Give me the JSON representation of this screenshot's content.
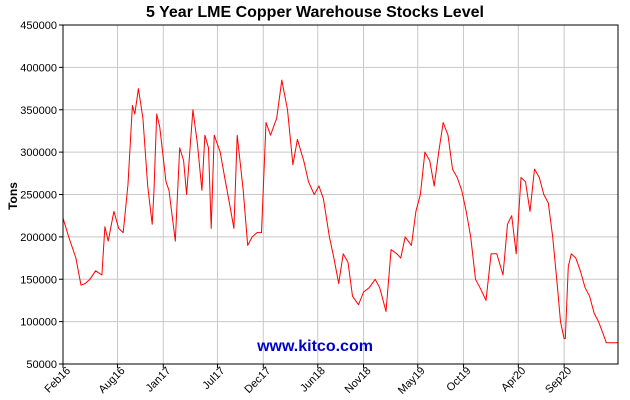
{
  "chart_data": {
    "type": "line",
    "title": "5 Year LME Copper Warehouse Stocks Level",
    "ylabel": "Tons",
    "xlabel": "",
    "ylim": [
      50000,
      450000
    ],
    "xlim": [
      "2016-02-01",
      "2021-02-28"
    ],
    "grid": true,
    "legend": "none",
    "y_ticks": [
      "50000",
      "100000",
      "150000",
      "200000",
      "250000",
      "300000",
      "350000",
      "400000",
      "450000"
    ],
    "x_ticks": [
      {
        "label": "Feb16",
        "date": "2016-02-01"
      },
      {
        "label": "Aug16",
        "date": "2016-08-01"
      },
      {
        "label": "Jan17",
        "date": "2017-01-01"
      },
      {
        "label": "Jul17",
        "date": "2017-07-01"
      },
      {
        "label": "Dec17",
        "date": "2017-12-01"
      },
      {
        "label": "Jun18",
        "date": "2018-06-01"
      },
      {
        "label": "Nov18",
        "date": "2018-11-01"
      },
      {
        "label": "May19",
        "date": "2019-05-01"
      },
      {
        "label": "Oct19",
        "date": "2019-10-01"
      },
      {
        "label": "Apr20",
        "date": "2020-04-01"
      },
      {
        "label": "Sep20",
        "date": "2020-09-01"
      }
    ],
    "series": [
      {
        "color": "#ff0000",
        "x": [
          "2016-02-01",
          "2016-02-20",
          "2016-03-15",
          "2016-04-01",
          "2016-04-15",
          "2016-05-01",
          "2016-05-20",
          "2016-06-10",
          "2016-06-20",
          "2016-07-01",
          "2016-07-20",
          "2016-08-05",
          "2016-08-20",
          "2016-09-05",
          "2016-09-20",
          "2016-09-28",
          "2016-10-10",
          "2016-10-25",
          "2016-11-10",
          "2016-11-25",
          "2016-12-01",
          "2016-12-10",
          "2016-12-20",
          "2017-01-10",
          "2017-01-20",
          "2017-02-10",
          "2017-02-25",
          "2017-03-10",
          "2017-03-20",
          "2017-04-10",
          "2017-04-25",
          "2017-05-10",
          "2017-05-20",
          "2017-06-01",
          "2017-06-10",
          "2017-06-20",
          "2017-07-10",
          "2017-07-25",
          "2017-08-10",
          "2017-08-25",
          "2017-09-05",
          "2017-09-25",
          "2017-10-10",
          "2017-10-25",
          "2017-11-10",
          "2017-11-25",
          "2017-12-10",
          "2017-12-25",
          "2018-01-15",
          "2018-02-01",
          "2018-02-20",
          "2018-03-10",
          "2018-03-25",
          "2018-04-15",
          "2018-05-01",
          "2018-05-20",
          "2018-06-05",
          "2018-06-20",
          "2018-07-10",
          "2018-07-25",
          "2018-08-10",
          "2018-08-25",
          "2018-09-10",
          "2018-09-25",
          "2018-10-15",
          "2018-11-01",
          "2018-11-20",
          "2018-12-10",
          "2018-12-25",
          "2019-01-15",
          "2019-02-01",
          "2019-02-20",
          "2019-03-05",
          "2019-03-20",
          "2019-04-10",
          "2019-04-25",
          "2019-05-10",
          "2019-05-25",
          "2019-06-10",
          "2019-06-25",
          "2019-07-10",
          "2019-07-25",
          "2019-08-10",
          "2019-08-25",
          "2019-09-10",
          "2019-09-25",
          "2019-10-10",
          "2019-10-25",
          "2019-11-10",
          "2019-11-25",
          "2019-12-15",
          "2020-01-01",
          "2020-01-20",
          "2020-02-10",
          "2020-02-25",
          "2020-03-10",
          "2020-03-25",
          "2020-04-10",
          "2020-04-25",
          "2020-05-10",
          "2020-05-25",
          "2020-06-10",
          "2020-06-25",
          "2020-07-10",
          "2020-07-25",
          "2020-08-10",
          "2020-08-20",
          "2020-09-01",
          "2020-09-05",
          "2020-09-15",
          "2020-09-25",
          "2020-10-10",
          "2020-10-25",
          "2020-11-10",
          "2020-11-25",
          "2020-12-10",
          "2020-12-25",
          "2021-01-10",
          "2021-01-20",
          "2021-02-01",
          "2021-02-15",
          "2021-02-28"
        ],
        "values": [
          222000,
          200000,
          175000,
          143000,
          145000,
          150000,
          160000,
          155000,
          212000,
          195000,
          230000,
          210000,
          205000,
          262000,
          355000,
          345000,
          375000,
          340000,
          260000,
          215000,
          255000,
          345000,
          330000,
          265000,
          255000,
          195000,
          305000,
          290000,
          250000,
          350000,
          310000,
          255000,
          320000,
          305000,
          210000,
          320000,
          300000,
          270000,
          240000,
          210000,
          320000,
          255000,
          190000,
          200000,
          205000,
          205000,
          335000,
          320000,
          340000,
          385000,
          350000,
          285000,
          315000,
          290000,
          265000,
          250000,
          260000,
          245000,
          200000,
          175000,
          145000,
          180000,
          170000,
          130000,
          120000,
          135000,
          140000,
          150000,
          140000,
          112000,
          185000,
          180000,
          175000,
          200000,
          190000,
          230000,
          250000,
          300000,
          290000,
          260000,
          300000,
          335000,
          320000,
          280000,
          270000,
          255000,
          230000,
          200000,
          150000,
          140000,
          125000,
          180000,
          180000,
          155000,
          215000,
          225000,
          180000,
          270000,
          265000,
          230000,
          280000,
          270000,
          250000,
          240000,
          200000,
          140000,
          100000,
          80000,
          80000,
          165000,
          180000,
          175000,
          160000,
          140000,
          130000,
          110000,
          100000,
          85000,
          75000,
          75000,
          75000,
          75000
        ]
      }
    ],
    "annotations": [
      "www.kitco.com"
    ]
  },
  "colors": {
    "line": "#ff0000",
    "grid": "#c8c8c8",
    "watermark": "#0000cc",
    "axis": "#000000"
  }
}
